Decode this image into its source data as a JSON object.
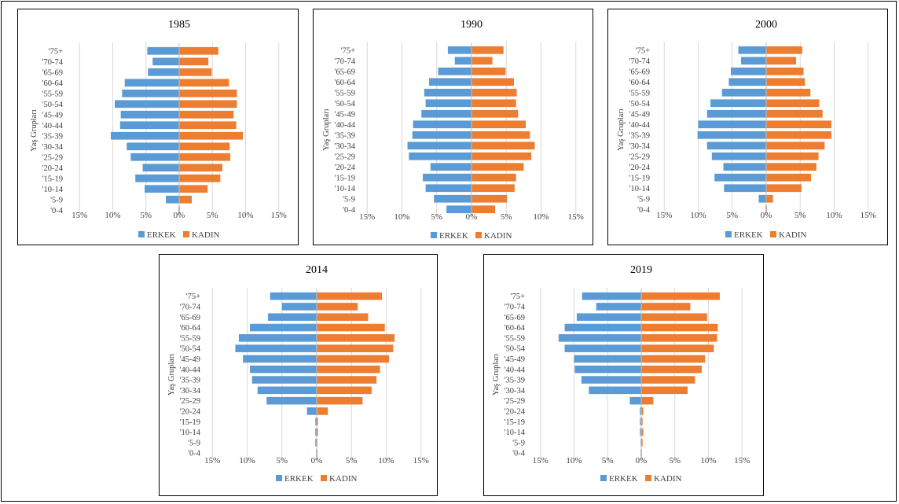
{
  "chart_data": [
    {
      "type": "bar",
      "title": "1985",
      "ylabel": "Yaş Grupları",
      "categories": [
        "'75+",
        "'70-74",
        "'65-69",
        "'60-64",
        "'55-59",
        "'50-54",
        "'45-49",
        "'40-44",
        "'35-39",
        "'30-34",
        "'25-29",
        "'20-24",
        "'15-19",
        "'10-14",
        "'5-9",
        "'0-4"
      ],
      "series": [
        {
          "name": "ERKEK",
          "color": "#5B9BD5",
          "values": [
            -4.8,
            -4.0,
            -4.7,
            -8.2,
            -8.6,
            -9.7,
            -8.8,
            -8.9,
            -10.3,
            -7.9,
            -7.3,
            -5.5,
            -6.6,
            -5.2,
            -2.0,
            -0.1
          ]
        },
        {
          "name": "KADIN",
          "color": "#ED7D31",
          "values": [
            5.9,
            4.4,
            4.9,
            7.5,
            8.7,
            8.7,
            8.2,
            8.6,
            9.6,
            7.6,
            7.7,
            6.5,
            6.2,
            4.3,
            1.9,
            0.1
          ]
        }
      ],
      "xlim": [
        -15,
        15
      ],
      "xticks": [
        "15%",
        "10%",
        "5%",
        "0%",
        "5%",
        "10%",
        "15%"
      ]
    },
    {
      "type": "bar",
      "title": "1990",
      "ylabel": "Yaş Grupları",
      "categories": [
        "'75+",
        "'70-74",
        "'65-69",
        "'60-64",
        "'55-59",
        "'50-54",
        "'45-49",
        "'40-44",
        "'35-39",
        "'30-34",
        "'25-29",
        "'20-24",
        "'15-19",
        "'10-14",
        "'5-9",
        "'0-4"
      ],
      "series": [
        {
          "name": "ERKEK",
          "color": "#5B9BD5",
          "values": [
            -3.4,
            -2.4,
            -4.8,
            -6.1,
            -6.8,
            -6.6,
            -7.2,
            -8.4,
            -8.5,
            -9.2,
            -9.0,
            -5.9,
            -7.0,
            -6.6,
            -5.4,
            -3.6
          ]
        },
        {
          "name": "KADIN",
          "color": "#ED7D31",
          "values": [
            4.6,
            3.0,
            4.9,
            6.1,
            6.5,
            6.4,
            6.7,
            7.8,
            8.4,
            9.1,
            8.6,
            7.5,
            6.4,
            6.2,
            5.1,
            3.4
          ]
        }
      ],
      "xlim": [
        -15,
        15
      ],
      "xticks": [
        "15%",
        "10%",
        "5%",
        "0%",
        "5%",
        "10%",
        "15%"
      ]
    },
    {
      "type": "bar",
      "title": "2000",
      "ylabel": "Yaş Grupları",
      "categories": [
        "'75+",
        "'70-74",
        "'65-69",
        "'60-64",
        "'55-59",
        "'50-54",
        "'45-49",
        "'40-44",
        "'35-39",
        "'30-34",
        "'25-29",
        "'20-24",
        "'15-19",
        "'10-14",
        "'5-9",
        "'0-4"
      ],
      "series": [
        {
          "name": "ERKEK",
          "color": "#5B9BD5",
          "values": [
            -4.1,
            -3.7,
            -5.2,
            -5.5,
            -6.5,
            -8.2,
            -8.7,
            -10.0,
            -10.1,
            -8.7,
            -8.0,
            -6.3,
            -7.6,
            -6.2,
            -1.1,
            -0.1
          ]
        },
        {
          "name": "KADIN",
          "color": "#ED7D31",
          "values": [
            5.3,
            4.4,
            5.5,
            5.7,
            6.5,
            7.8,
            8.3,
            9.6,
            9.6,
            8.6,
            7.7,
            7.4,
            6.6,
            5.2,
            1.0,
            0.1
          ]
        }
      ],
      "xlim": [
        -15,
        15
      ],
      "xticks": [
        "15%",
        "10%",
        "5%",
        "0%",
        "5%",
        "10%",
        "15%"
      ]
    },
    {
      "type": "bar",
      "title": "2014",
      "ylabel": "Yaş Grupları",
      "categories": [
        "'75+",
        "'70-74",
        "'65-69",
        "'60-64",
        "'55-59",
        "'50-54",
        "'45-49",
        "'40-44",
        "'35-39",
        "'30-34",
        "'25-29",
        "'20-24",
        "'15-19",
        "'10-14",
        "'5-9",
        "'0-4"
      ],
      "series": [
        {
          "name": "ERKEK",
          "color": "#5B9BD5",
          "values": [
            -6.7,
            -5.0,
            -7.0,
            -9.6,
            -11.2,
            -11.7,
            -10.6,
            -9.6,
            -9.3,
            -8.5,
            -7.2,
            -1.4,
            -0.2,
            -0.2,
            -0.2,
            -0.1
          ]
        },
        {
          "name": "KADIN",
          "color": "#ED7D31",
          "values": [
            9.4,
            5.9,
            7.4,
            9.8,
            11.2,
            11.0,
            10.4,
            9.1,
            8.6,
            7.9,
            6.6,
            1.6,
            0.2,
            0.2,
            0.1,
            0.1
          ]
        }
      ],
      "xlim": [
        -15,
        15
      ],
      "xticks": [
        "15%",
        "10%",
        "5%",
        "0%",
        "5%",
        "10%",
        "15%"
      ]
    },
    {
      "type": "bar",
      "title": "2019",
      "ylabel": "Yaş Grupları",
      "categories": [
        "'75+",
        "'70-74",
        "'65-69",
        "'60-64",
        "'55-59",
        "'50-54",
        "'45-49",
        "'40-44",
        "'35-39",
        "'30-34",
        "'25-29",
        "'20-24",
        "'15-19",
        "'10-14",
        "'5-9",
        "'0-4"
      ],
      "series": [
        {
          "name": "ERKEK",
          "color": "#5B9BD5",
          "values": [
            -8.8,
            -6.7,
            -9.6,
            -11.4,
            -12.3,
            -11.4,
            -10.0,
            -9.9,
            -8.9,
            -7.8,
            -1.7,
            -0.2,
            -0.2,
            -0.2,
            -0.1,
            -0.1
          ]
        },
        {
          "name": "KADIN",
          "color": "#ED7D31",
          "values": [
            11.7,
            7.3,
            9.8,
            11.4,
            11.3,
            10.8,
            9.5,
            9.0,
            8.0,
            6.9,
            1.8,
            0.3,
            0.2,
            0.3,
            0.2,
            0.1
          ]
        }
      ],
      "xlim": [
        -15,
        15
      ],
      "xticks": [
        "15%",
        "10%",
        "5%",
        "0%",
        "5%",
        "10%",
        "15%"
      ]
    }
  ]
}
